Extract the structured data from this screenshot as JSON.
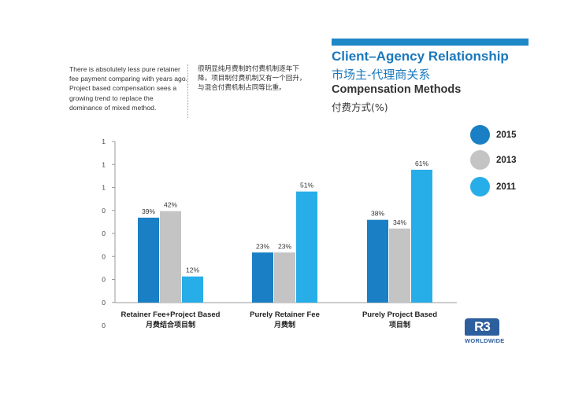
{
  "notes": {
    "english": "There is absolutely less pure retainer fee payment comparing with years ago.  Project based compensation sees a growing trend to replace the dominance of mixed method.",
    "chinese": "很明显纯月费制的付费机制逐年下降。项目制付费机制又有一个回升，与混合付费机制占同等比重。"
  },
  "header": {
    "title_en": "Client–Agency Relationship",
    "title_zh": "市场主-代理商关系",
    "subtitle_en": "Compensation Methods",
    "subtitle_zh": "付费方式(%)"
  },
  "colors": {
    "2015": "#1a7fc4",
    "2013": "#c4c4c4",
    "2011": "#27aee9",
    "accent": "#1e87c8",
    "logo": "#2d5f9e"
  },
  "logo": {
    "mark": "R3",
    "wordmark": "WORLDWIDE"
  },
  "chart_data": {
    "type": "bar",
    "title": "Compensation Methods 付费方式(%)",
    "categories": [
      {
        "en": "Retainer Fee+Project Based",
        "zh": "月费结合项目制"
      },
      {
        "en": "Purely Retainer Fee",
        "zh": "月费制"
      },
      {
        "en": "Purely Project Based",
        "zh": "项目制"
      }
    ],
    "series": [
      {
        "name": "2015",
        "values": [
          39,
          23,
          38
        ]
      },
      {
        "name": "2013",
        "values": [
          42,
          23,
          34
        ]
      },
      {
        "name": "2011",
        "values": [
          12,
          51,
          61
        ]
      }
    ],
    "data_label_suffix": "%",
    "y_tick_labels": [
      "0",
      "0",
      "0",
      "0",
      "0",
      "0",
      "1",
      "1",
      "1"
    ],
    "ylim": [
      0,
      70
    ],
    "legend": [
      "2015",
      "2013",
      "2011"
    ],
    "legend_position": "right",
    "grid": false,
    "xlabel": "",
    "ylabel": ""
  }
}
